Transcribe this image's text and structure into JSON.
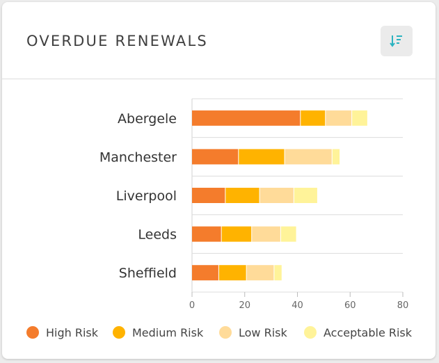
{
  "header": {
    "title": "OVERDUE RENEWALS",
    "sort_icon": "sort-descending-icon",
    "accent": "#2bb3c0"
  },
  "chart_data": {
    "type": "bar",
    "orientation": "horizontal",
    "stacked": true,
    "title": "OVERDUE RENEWALS",
    "categories": [
      "Abergele",
      "Manchester",
      "Liverpool",
      "Leeds",
      "Sheffield"
    ],
    "series": [
      {
        "name": "High Risk",
        "color": "#f47c2c",
        "values": [
          41,
          17.5,
          12.5,
          11,
          10
        ]
      },
      {
        "name": "Medium Risk",
        "color": "#ffb300",
        "values": [
          9.5,
          17.5,
          13,
          11.5,
          10.5
        ]
      },
      {
        "name": "Low Risk",
        "color": "#ffdb99",
        "values": [
          10,
          18,
          13,
          11,
          10.5
        ]
      },
      {
        "name": "Acceptable Risk",
        "color": "#fff399",
        "values": [
          6,
          3,
          9,
          6,
          3
        ]
      }
    ],
    "xlim": [
      0,
      80
    ],
    "xticks": [
      "0",
      "20",
      "40",
      "60",
      "80"
    ],
    "xlabel": "",
    "ylabel": "",
    "grid": "vertical at category separators",
    "legend": "bottom"
  }
}
